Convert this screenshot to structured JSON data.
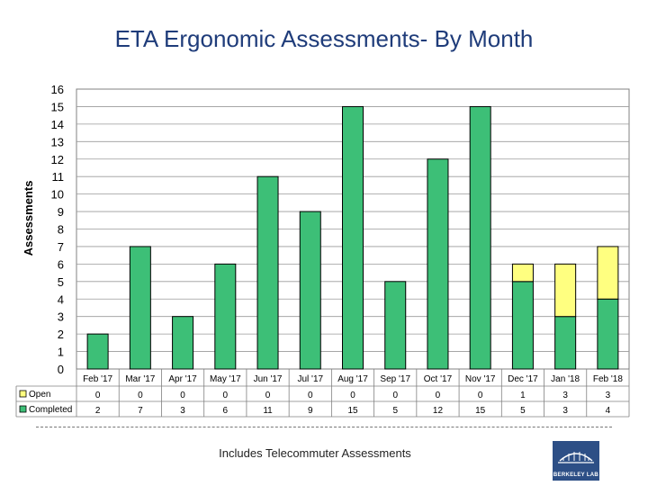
{
  "title": "ETA Ergonomic Assessments- By Month",
  "note": "Includes Telecommuter Assessments",
  "logo_text": "BERKELEY LAB",
  "colors": {
    "completed": "#3dbf77",
    "open": "#ffff80",
    "title": "#1f3c7a",
    "logo": "#2d4f86"
  },
  "chart_data": {
    "type": "bar",
    "stacked": true,
    "ylabel": "Assessments",
    "xlabel": "",
    "ylim": [
      0,
      16
    ],
    "yticks": [
      0,
      1,
      2,
      3,
      4,
      5,
      6,
      7,
      8,
      9,
      10,
      11,
      12,
      13,
      14,
      15,
      16
    ],
    "categories": [
      "Feb '17",
      "Mar '17",
      "Apr '17",
      "May '17",
      "Jun '17",
      "Jul '17",
      "Aug '17",
      "Sep '17",
      "Oct '17",
      "Nov '17",
      "Dec '17",
      "Jan '18",
      "Feb '18"
    ],
    "series": [
      {
        "name": "Completed",
        "values": [
          2,
          7,
          3,
          6,
          11,
          9,
          15,
          5,
          12,
          15,
          5,
          3,
          4
        ]
      },
      {
        "name": "Open",
        "values": [
          0,
          0,
          0,
          0,
          0,
          0,
          0,
          0,
          0,
          0,
          1,
          3,
          3
        ]
      }
    ],
    "legend": "data-table-left"
  }
}
